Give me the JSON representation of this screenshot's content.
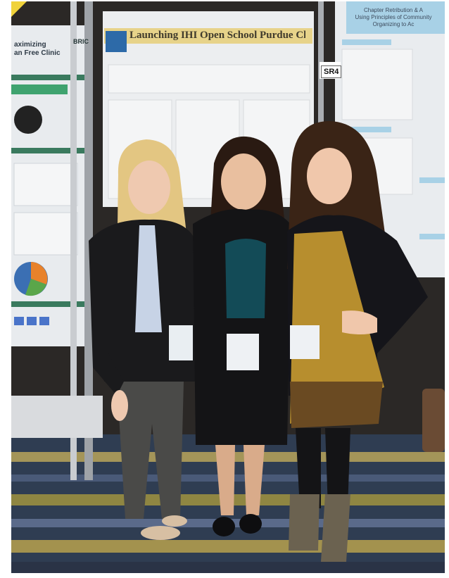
{
  "scene": {
    "description_kind": "photograph",
    "palette": {
      "poster_bg": "#e9ecef",
      "poster_header": "#e7d38a",
      "blazer": "#1a1a1c",
      "floor_a": "#2f3d52",
      "floor_b": "#b8a45a",
      "hair_blonde": "#e3c682",
      "hair_dark": "#2a1a12"
    }
  },
  "poster_center": {
    "title": "Launching IHI Open School Purdue Chapter"
  },
  "poster_left": {
    "title": "aximizing\nan Free Clinic",
    "brand": "BRIC"
  },
  "poster_right": {
    "header": "Chapter Retribution & A\nUsing Principles of Community Organizing to Ac"
  },
  "booth_sign": {
    "label": "SR4"
  }
}
